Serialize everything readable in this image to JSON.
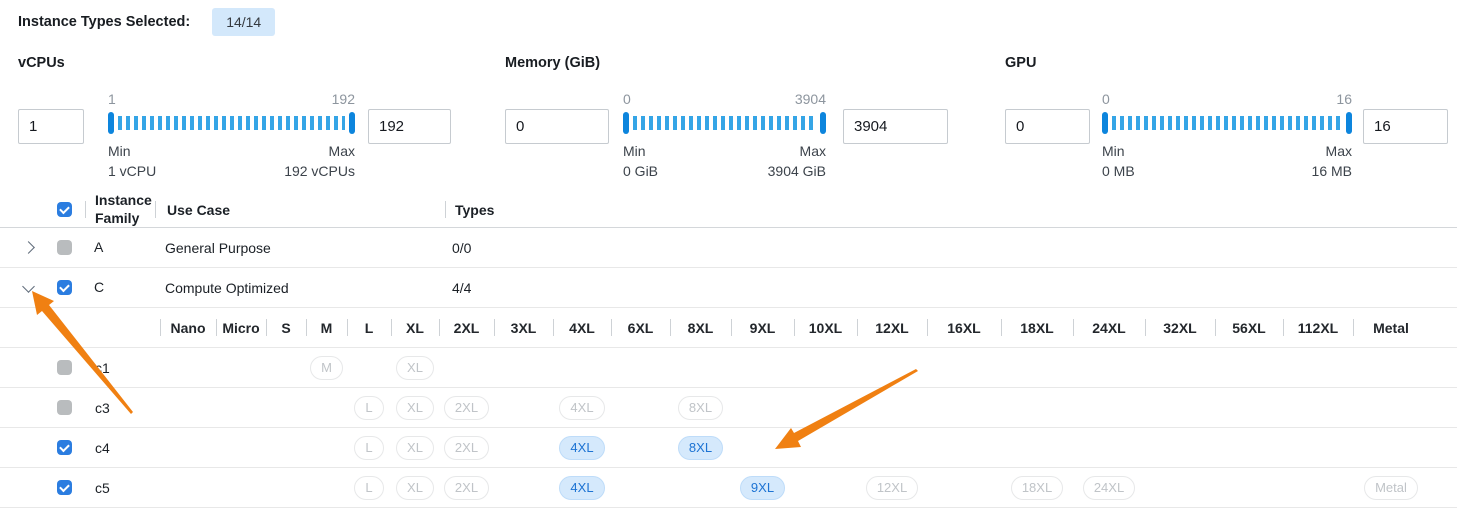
{
  "header": {
    "label": "Instance Types Selected:",
    "badge": "14/14"
  },
  "filters": [
    {
      "title": "vCPUs",
      "scale_min": "1",
      "scale_max": "192",
      "min_value": "1",
      "max_value": "192",
      "min_label": "Min",
      "min_sub": "1 vCPU",
      "max_label": "Max",
      "max_sub": "192 vCPUs"
    },
    {
      "title": "Memory (GiB)",
      "scale_min": "0",
      "scale_max": "3904",
      "min_value": "0",
      "max_value": "3904",
      "min_label": "Min",
      "min_sub": "0 GiB",
      "max_label": "Max",
      "max_sub": "3904 GiB"
    },
    {
      "title": "GPU",
      "scale_min": "0",
      "scale_max": "16",
      "min_value": "0",
      "max_value": "16",
      "min_label": "Min",
      "min_sub": "0 MB",
      "max_label": "Max",
      "max_sub": "16 MB"
    }
  ],
  "table": {
    "select_all": "checked",
    "columns": {
      "family": "Instance Family",
      "use_case": "Use Case",
      "types": "Types"
    },
    "family_rows": [
      {
        "expand": "right",
        "checkbox": "disabled",
        "family": "A",
        "use_case": "General Purpose",
        "types": "0/0"
      },
      {
        "expand": "down",
        "checkbox": "checked",
        "family": "C",
        "use_case": "Compute Optimized",
        "types": "4/4"
      }
    ],
    "sizes": [
      "Nano",
      "Micro",
      "S",
      "M",
      "L",
      "XL",
      "2XL",
      "3XL",
      "4XL",
      "6XL",
      "8XL",
      "9XL",
      "10XL",
      "12XL",
      "16XL",
      "18XL",
      "24XL",
      "32XL",
      "56XL",
      "112XL",
      "Metal"
    ],
    "type_rows": [
      {
        "name": "c1",
        "checkbox": "disabled",
        "pills": [
          {
            "size": "M",
            "state": "unselected"
          },
          {
            "size": "XL",
            "state": "unselected"
          }
        ]
      },
      {
        "name": "c3",
        "checkbox": "disabled",
        "pills": [
          {
            "size": "L",
            "state": "unselected"
          },
          {
            "size": "XL",
            "state": "unselected"
          },
          {
            "size": "2XL",
            "state": "unselected"
          },
          {
            "size": "4XL",
            "state": "unselected"
          },
          {
            "size": "8XL",
            "state": "unselected"
          }
        ]
      },
      {
        "name": "c4",
        "checkbox": "checked",
        "pills": [
          {
            "size": "L",
            "state": "unselected"
          },
          {
            "size": "XL",
            "state": "unselected"
          },
          {
            "size": "2XL",
            "state": "unselected"
          },
          {
            "size": "4XL",
            "state": "selected"
          },
          {
            "size": "8XL",
            "state": "selected"
          }
        ]
      },
      {
        "name": "c5",
        "checkbox": "checked",
        "pills": [
          {
            "size": "L",
            "state": "unselected"
          },
          {
            "size": "XL",
            "state": "unselected"
          },
          {
            "size": "2XL",
            "state": "unselected"
          },
          {
            "size": "4XL",
            "state": "selected"
          },
          {
            "size": "9XL",
            "state": "selected"
          },
          {
            "size": "12XL",
            "state": "unselected"
          },
          {
            "size": "18XL",
            "state": "unselected"
          },
          {
            "size": "24XL",
            "state": "unselected"
          },
          {
            "size": "Metal",
            "state": "unselected"
          }
        ]
      }
    ]
  },
  "colors": {
    "accent_blue": "#2b7de0",
    "slider_handle": "#0d85dd",
    "slider_tick": "#35a5e6",
    "badge_bg": "#d3e8fb",
    "selected_pill_bg": "#d5e9fc",
    "selected_pill_text": "#1d73d3",
    "arrow_orange": "#f08012"
  }
}
